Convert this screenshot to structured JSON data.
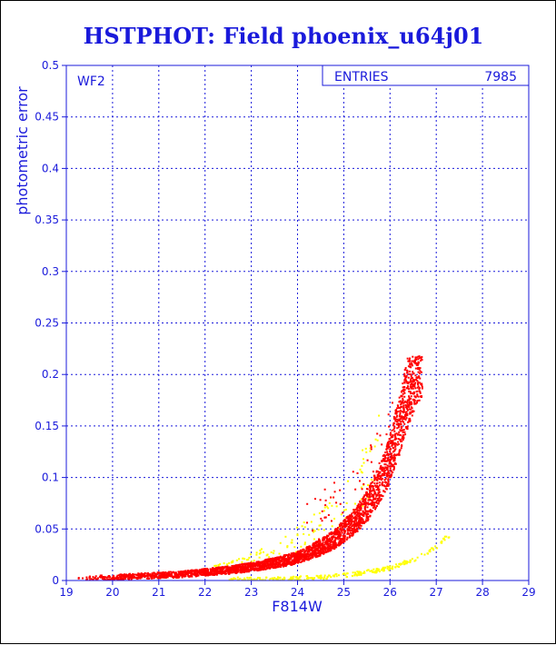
{
  "chart_data": {
    "type": "scatter",
    "title": "HSTPHOT: Field phoenix_u64j01",
    "xlabel": "F814W",
    "ylabel": "photometric error",
    "panel_label": "WF2",
    "xlim": [
      19,
      29
    ],
    "ylim": [
      0,
      0.5
    ],
    "x_ticks": [
      19,
      20,
      21,
      22,
      23,
      24,
      25,
      26,
      27,
      28,
      29
    ],
    "y_ticks": [
      0,
      0.05,
      0.1,
      0.15,
      0.2,
      0.25,
      0.3,
      0.35,
      0.4,
      0.45,
      0.5
    ],
    "x_tick_labels": [
      "19",
      "20",
      "21",
      "22",
      "23",
      "24",
      "25",
      "26",
      "27",
      "28",
      "29"
    ],
    "y_tick_labels": [
      "0",
      "0.05",
      "0.1",
      "0.15",
      "0.2",
      "0.25",
      "0.3",
      "0.35",
      "0.4",
      "0.45",
      "0.5"
    ],
    "grid": true,
    "stats_box": {
      "label": "ENTRIES",
      "value": "7985"
    },
    "series": [
      {
        "color": "#ff0000",
        "description_points": [
          [
            19.2,
            0.002
          ],
          [
            20.0,
            0.003
          ],
          [
            21.0,
            0.005
          ],
          [
            21.5,
            0.006
          ],
          [
            22.0,
            0.008
          ],
          [
            22.5,
            0.01
          ],
          [
            23.0,
            0.013
          ],
          [
            23.5,
            0.017
          ],
          [
            24.0,
            0.022
          ],
          [
            24.5,
            0.032
          ],
          [
            24.8,
            0.04
          ],
          [
            25.0,
            0.048
          ],
          [
            25.3,
            0.06
          ],
          [
            25.5,
            0.072
          ],
          [
            25.7,
            0.088
          ],
          [
            25.9,
            0.105
          ],
          [
            26.0,
            0.118
          ],
          [
            26.1,
            0.135
          ],
          [
            26.2,
            0.15
          ],
          [
            26.3,
            0.168
          ],
          [
            26.4,
            0.185
          ],
          [
            26.5,
            0.2
          ],
          [
            26.6,
            0.215
          ]
        ]
      },
      {
        "color": "#ffff00",
        "description_points": [
          [
            23.0,
            0.001
          ],
          [
            24.0,
            0.002
          ],
          [
            24.5,
            0.003
          ],
          [
            25.0,
            0.005
          ],
          [
            25.5,
            0.008
          ],
          [
            26.0,
            0.012
          ],
          [
            26.5,
            0.02
          ],
          [
            27.0,
            0.032
          ],
          [
            27.2,
            0.042
          ],
          [
            23.6,
            0.06
          ],
          [
            24.2,
            0.075
          ],
          [
            24.8,
            0.095
          ],
          [
            25.2,
            0.12
          ],
          [
            22.5,
            0.03
          ],
          [
            23.3,
            0.045
          ],
          [
            24.0,
            0.055
          ]
        ]
      }
    ]
  }
}
